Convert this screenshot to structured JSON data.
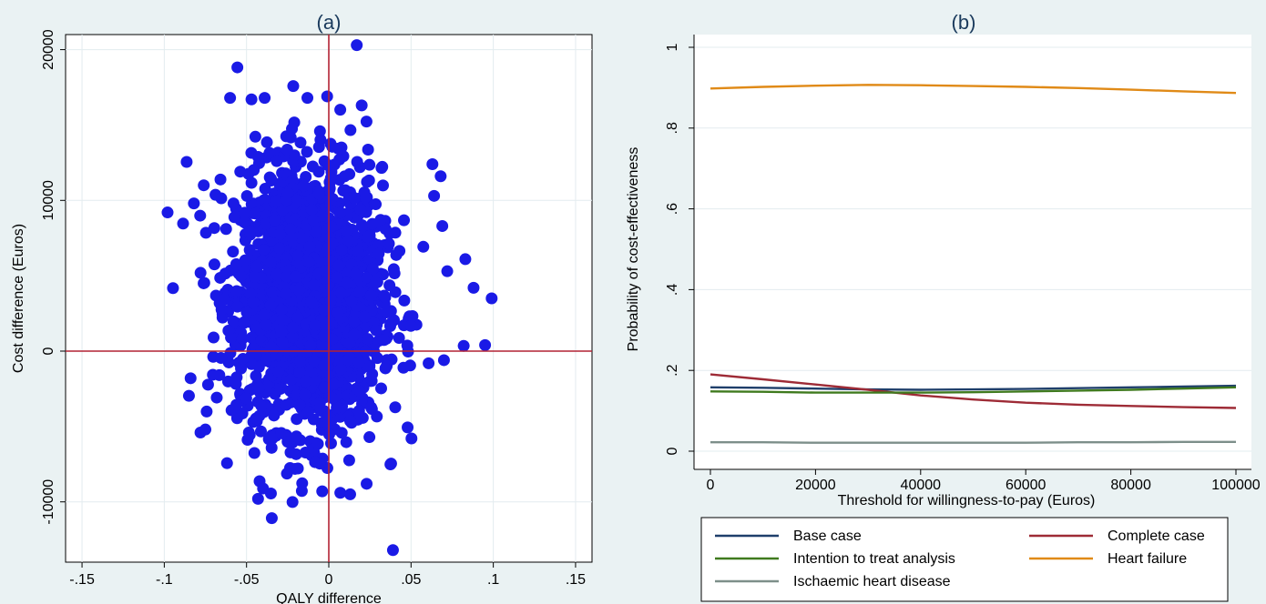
{
  "chart_data": [
    {
      "type": "scatter",
      "title": "(a)",
      "xlabel": "QALY difference",
      "ylabel": "Cost difference (Euros)",
      "xlim": [
        -0.16,
        0.16
      ],
      "ylim": [
        -14000,
        21000
      ],
      "xticks": [
        -0.15,
        -0.1,
        -0.05,
        0,
        0.05,
        0.1,
        0.15
      ],
      "xtick_labels": [
        "-.15",
        "-.1",
        "-.05",
        "0",
        ".05",
        ".1",
        ".15"
      ],
      "yticks": [
        -10000,
        0,
        10000,
        20000
      ],
      "ytick_labels": [
        "-10000",
        "0",
        "10000",
        "20000"
      ],
      "grid": true,
      "reference_lines": {
        "x": 0,
        "y": 0,
        "color": "#b22234"
      },
      "marker_color": "#1a1ae6",
      "cloud_center": {
        "x": -0.012,
        "y": 3500
      },
      "cloud_sd": {
        "x": 0.022,
        "y": 4300
      },
      "points": [
        {
          "x": 0.017,
          "y": 20300
        },
        {
          "x": 0.039,
          "y": -13200
        },
        {
          "x": -0.098,
          "y": 9200
        },
        {
          "x": 0.099,
          "y": 3500
        },
        {
          "x": 0.095,
          "y": 400
        },
        {
          "x": 0.088,
          "y": 4200
        },
        {
          "x": 0.082,
          "y": 350
        },
        {
          "x": 0.083,
          "y": 6100
        },
        {
          "x": 0.072,
          "y": 5300
        },
        {
          "x": 0.07,
          "y": -600
        },
        {
          "x": 0.069,
          "y": 8300
        },
        {
          "x": 0.068,
          "y": 11600
        },
        {
          "x": -0.084,
          "y": -1800
        },
        {
          "x": -0.082,
          "y": 9800
        },
        {
          "x": -0.078,
          "y": -5400
        },
        {
          "x": -0.075,
          "y": -5200
        },
        {
          "x": -0.076,
          "y": 11000
        },
        {
          "x": -0.043,
          "y": -9800
        },
        {
          "x": 0.007,
          "y": -9400
        },
        {
          "x": 0.013,
          "y": -9500
        },
        {
          "x": 0.023,
          "y": -8800
        },
        {
          "x": -0.004,
          "y": -9300
        },
        {
          "x": -0.06,
          "y": 16800
        },
        {
          "x": -0.047,
          "y": 16700
        },
        {
          "x": -0.039,
          "y": 16800
        },
        {
          "x": -0.013,
          "y": 16800
        },
        {
          "x": -0.001,
          "y": 16900
        },
        {
          "x": 0.02,
          "y": 16300
        },
        {
          "x": 0.063,
          "y": 12400
        },
        {
          "x": 0.064,
          "y": 10300
        }
      ]
    },
    {
      "type": "line",
      "title": "(b)",
      "xlabel": "Threshold for willingness-to-pay (Euros)",
      "ylabel": "Probability of cost-effectiveness",
      "xlim": [
        0,
        100000
      ],
      "ylim": [
        0,
        1
      ],
      "xticks": [
        0,
        20000,
        40000,
        60000,
        80000,
        100000
      ],
      "xtick_labels": [
        "0",
        "20000",
        "40000",
        "60000",
        "80000",
        "100000"
      ],
      "yticks": [
        0,
        0.2,
        0.4,
        0.6,
        0.8,
        1
      ],
      "ytick_labels": [
        "0",
        ".2",
        ".4",
        ".6",
        ".8",
        "1"
      ],
      "grid": true,
      "legend_position": "bottom",
      "x": [
        0,
        10000,
        20000,
        30000,
        40000,
        50000,
        60000,
        70000,
        80000,
        90000,
        100000
      ],
      "series": [
        {
          "name": "Base case",
          "color": "#1f3f6b",
          "values": [
            0.158,
            0.157,
            0.155,
            0.153,
            0.152,
            0.153,
            0.154,
            0.156,
            0.158,
            0.16,
            0.162
          ]
        },
        {
          "name": "Complete case",
          "color": "#9e2b36",
          "values": [
            0.19,
            0.178,
            0.165,
            0.152,
            0.138,
            0.128,
            0.12,
            0.115,
            0.112,
            0.109,
            0.107
          ]
        },
        {
          "name": "Intention to treat analysis",
          "color": "#3f7a1e",
          "values": [
            0.148,
            0.147,
            0.145,
            0.145,
            0.145,
            0.146,
            0.148,
            0.15,
            0.152,
            0.155,
            0.158
          ]
        },
        {
          "name": "Heart failure",
          "color": "#e08a17",
          "values": [
            0.898,
            0.902,
            0.905,
            0.907,
            0.906,
            0.904,
            0.902,
            0.899,
            0.895,
            0.891,
            0.887
          ]
        },
        {
          "name": "Ischaemic heart disease",
          "color": "#7d8f8a",
          "values": [
            0.022,
            0.022,
            0.021,
            0.021,
            0.021,
            0.021,
            0.021,
            0.022,
            0.022,
            0.023,
            0.023
          ]
        }
      ]
    }
  ]
}
